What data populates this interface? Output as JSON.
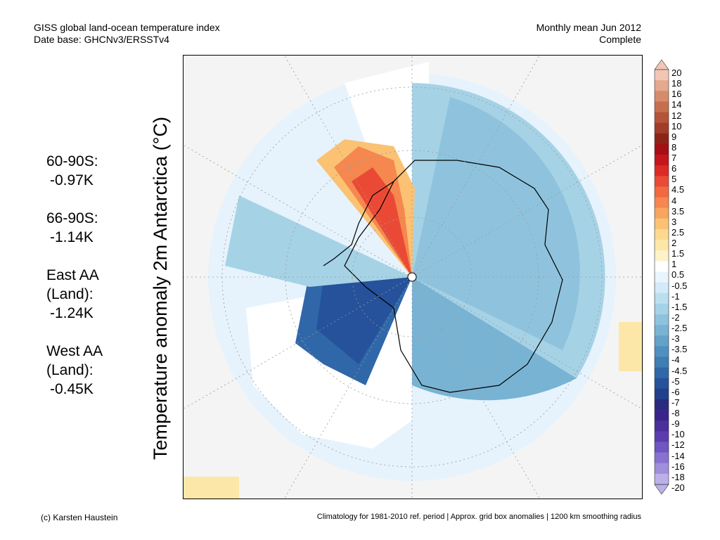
{
  "header": {
    "title_line1": "GISS global land-ocean temperature index",
    "title_line2": "Date base: GHCNv3/ERSSTv4",
    "right_line1": "Monthly mean Jun 2012",
    "right_line2": "Complete"
  },
  "y_axis_label": "Temperature anomaly 2m Antarctica (°C)",
  "stats": [
    {
      "key": "60-90S:",
      "value": "-0.97K"
    },
    {
      "key": "66-90S:",
      "value": "-1.14K"
    },
    {
      "key": "East AA (Land):",
      "value": "-1.24K"
    },
    {
      "key": "West AA (Land):",
      "value": "-0.45K"
    }
  ],
  "colorbar": {
    "labels": [
      "20",
      "18",
      "16",
      "14",
      "12",
      "10",
      "9",
      "8",
      "7",
      "6",
      "5",
      "4.5",
      "4",
      "3.5",
      "3",
      "2.5",
      "2",
      "1.5",
      "1",
      "0.5",
      "-0.5",
      "-1",
      "-1.5",
      "-2",
      "-2.5",
      "-3",
      "-3.5",
      "-4",
      "-4.5",
      "-5",
      "-6",
      "-7",
      "-8",
      "-9",
      "-10",
      "-12",
      "-14",
      "-16",
      "-18",
      "-20"
    ],
    "colors": [
      "#f2c6b4",
      "#e4a98e",
      "#d68c6c",
      "#c66f4f",
      "#b45439",
      "#a23d2a",
      "#8e2318",
      "#a50f15",
      "#c4161c",
      "#dc2a24",
      "#ea4a35",
      "#f2683f",
      "#f5874f",
      "#f8a560",
      "#fbc273",
      "#fdd98f",
      "#fde7a8",
      "#fef2c8",
      "#ffffff",
      "#e9f5fd",
      "#d3ebf8",
      "#bcdfef",
      "#a6d2e6",
      "#8fc3dd",
      "#79b3d3",
      "#64a2c9",
      "#5090c0",
      "#3f7db5",
      "#3067a8",
      "#25529a",
      "#223f8c",
      "#2a2a7f",
      "#3a248a",
      "#4b2f9c",
      "#5b3db0",
      "#6f56c0",
      "#8872cf",
      "#a08fdc",
      "#bbb0e8"
    ]
  },
  "footer": {
    "left": "(c) Karsten Haustein",
    "right": "Climatology for 1981-2010 ref. period | Approx. grid box anomalies | 1200 km smoothing radius"
  }
}
